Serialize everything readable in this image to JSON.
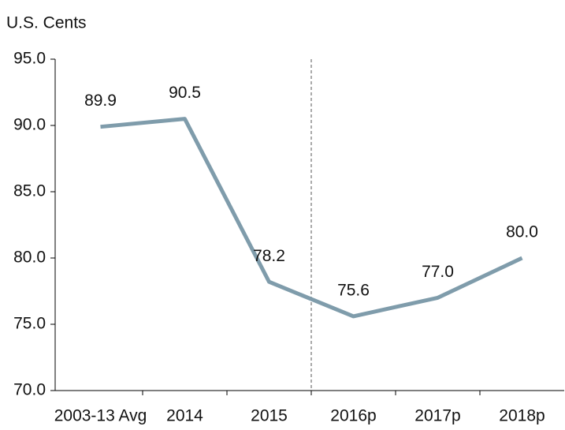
{
  "chart_data": {
    "type": "line",
    "y_axis_label": "U.S. Cents",
    "categories": [
      "2003-13 Avg",
      "2014",
      "2015",
      "2016p",
      "2017p",
      "2018p"
    ],
    "series": [
      {
        "color": "#7f9cab",
        "values": [
          89.9,
          90.5,
          78.2,
          75.6,
          77,
          80
        ],
        "value_labels": [
          "89.9",
          "90.5",
          "78.2",
          "75.6",
          "77.0",
          "80.0"
        ]
      }
    ],
    "ylim": [
      70,
      95
    ],
    "yticks": [
      {
        "value": 70,
        "label": "70.0"
      },
      {
        "value": 75,
        "label": "75.0"
      },
      {
        "value": 80,
        "label": "80.0"
      },
      {
        "value": 85,
        "label": "85.0"
      },
      {
        "value": 90,
        "label": "90.0"
      },
      {
        "value": 95,
        "label": "95.0"
      }
    ]
  }
}
